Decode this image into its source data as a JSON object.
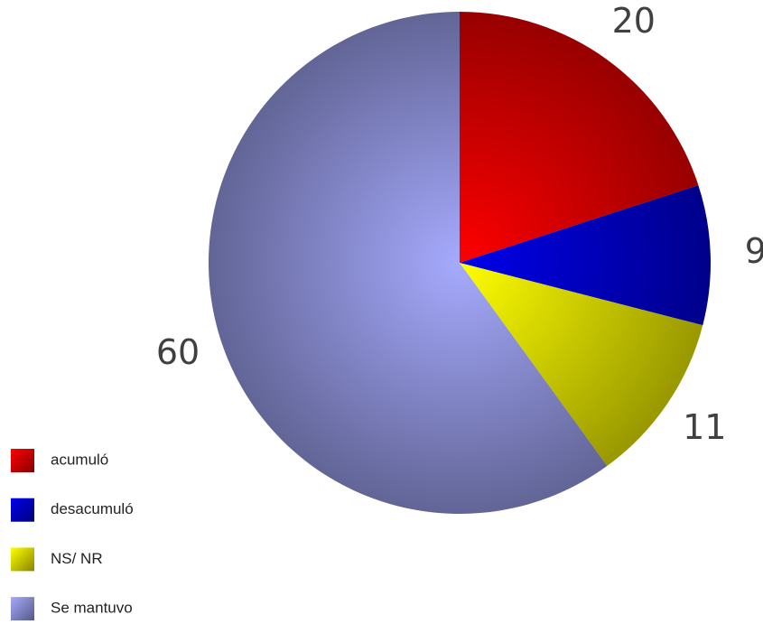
{
  "chart_data": {
    "type": "pie",
    "categories": [
      "acumuló",
      "desacumuló",
      "NS/ NR",
      "Se mantuvo"
    ],
    "values": [
      20,
      9,
      11,
      60
    ],
    "colors": [
      "#e00000",
      "#0000cc",
      "#e0e000",
      "#9094dc"
    ],
    "legend": "bottom-left"
  }
}
